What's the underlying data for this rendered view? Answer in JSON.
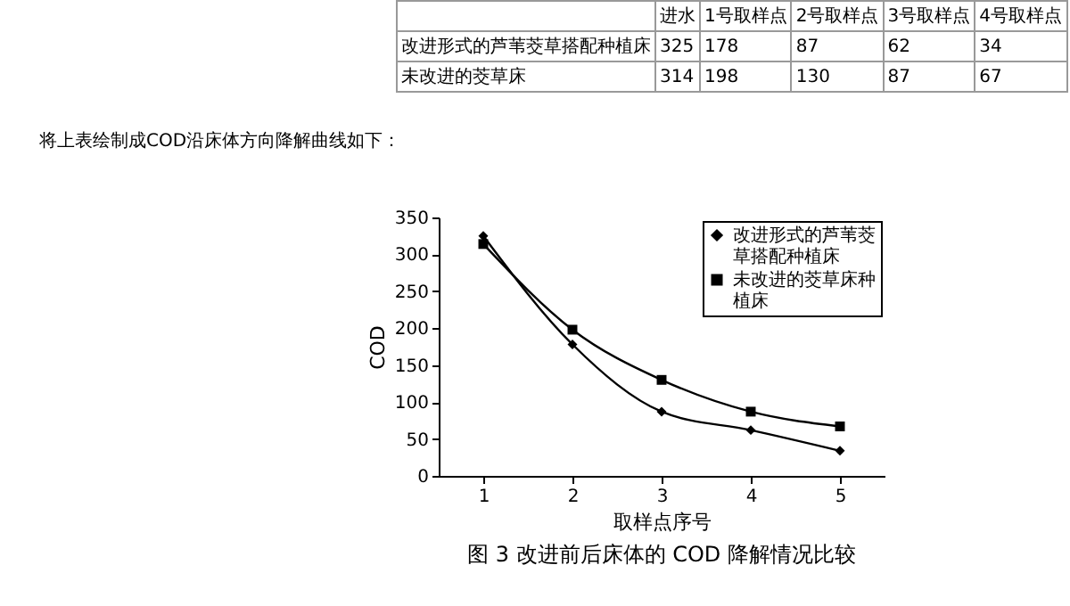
{
  "chart_data": {
    "type": "line",
    "title": "图 3 改进前后床体的 COD 降解情况比较",
    "xlabel": "取样点序号",
    "ylabel": "COD",
    "annotations": [
      "进水",
      "1号取样点",
      "2号取样点",
      "3号取样点",
      "4号取样点",
      "改进形式的芦苇茭草搭配种植床",
      "325",
      "178",
      "87",
      "62",
      "34",
      "未改进的茭草床",
      "314",
      "198",
      "130",
      "87",
      "67",
      "将上表绘制成COD沿床体方向降解曲线如下："
    ],
    "x": [
      1,
      2,
      3,
      4,
      5
    ],
    "xlim": [
      0.5,
      5.5
    ],
    "xticks": [
      1,
      2,
      3,
      4,
      5
    ],
    "ylim": [
      0,
      350
    ],
    "yticks": [
      0,
      50,
      100,
      150,
      200,
      250,
      300,
      350
    ],
    "series": [
      {
        "name": "改进形式的芦苇茭草搭配种植床",
        "color": "#000000",
        "marker": "diamond",
        "values": [
          325,
          178,
          87,
          62,
          34
        ]
      },
      {
        "name": "未改进的茭草床种植床",
        "color": "#000000",
        "marker": "square",
        "values": [
          314,
          198,
          130,
          87,
          67
        ]
      }
    ],
    "legend": "top right",
    "grid": false,
    "line_style": "solid"
  }
}
